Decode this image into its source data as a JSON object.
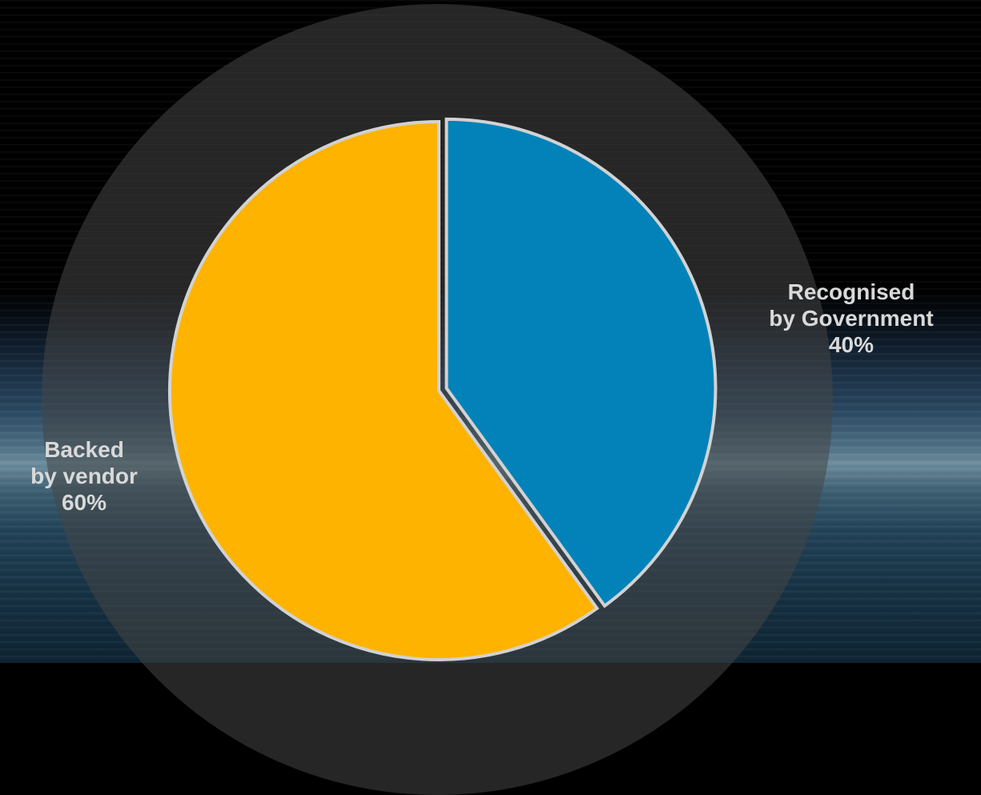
{
  "chart_data": {
    "type": "pie",
    "title": "",
    "slices": [
      {
        "label": "Recognised by Government",
        "value": 40,
        "display": "40%",
        "color": "#0282b8",
        "exploded": true
      },
      {
        "label": "Backed by vendor",
        "value": 60,
        "display": "60%",
        "color": "#fdb300",
        "exploded": false
      }
    ],
    "legend": "none",
    "labels": {
      "gov_line1": "Recognised",
      "gov_line2": "by Government",
      "gov_pct": "40%",
      "vendor_line1": "Backed",
      "vendor_line2": "by vendor",
      "vendor_pct": "60%"
    },
    "colors": {
      "slice_border": "#d2d2d2"
    }
  }
}
